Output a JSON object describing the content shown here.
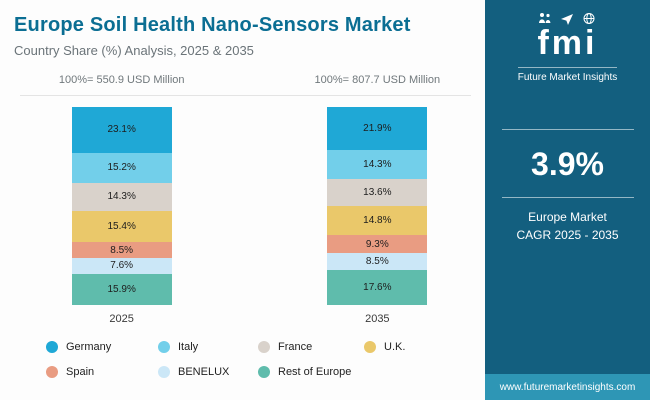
{
  "header": {
    "title": "Europe Soil Health Nano-Sensors Market",
    "subtitle": "Country Share (%) Analysis, 2025 & 2035"
  },
  "colors": {
    "title_color": "#0B6E93",
    "sidebar_bg": "#135F7F",
    "footer_bg": "#2E96B5",
    "gridline_color": "#e4e4e4"
  },
  "chart_data": {
    "type": "bar",
    "stacked": true,
    "title": "Europe Soil Health Nano-Sensors Market",
    "subtitle": "Country Share (%) Analysis, 2025 & 2035",
    "categories": [
      "2025",
      "2035"
    ],
    "totals": [
      "100%= 550.9 USD Million",
      "100%= 807.7 USD Million"
    ],
    "ylim": [
      0,
      100
    ],
    "legend_position": "bottom",
    "series": [
      {
        "name": "Germany",
        "color": "#1FA8D6",
        "values": [
          23.1,
          21.9
        ]
      },
      {
        "name": "Italy",
        "color": "#72CFEA",
        "values": [
          15.2,
          14.3
        ]
      },
      {
        "name": "France",
        "color": "#D9D2CB",
        "values": [
          14.3,
          13.6
        ]
      },
      {
        "name": "U.K.",
        "color": "#EAC86A",
        "values": [
          15.4,
          14.8
        ]
      },
      {
        "name": "Spain",
        "color": "#E99C82",
        "values": [
          8.5,
          9.3
        ]
      },
      {
        "name": "BENELUX",
        "color": "#CBE7F7",
        "values": [
          7.6,
          8.5
        ]
      },
      {
        "name": "Rest of Europe",
        "color": "#5FBCAC",
        "values": [
          15.9,
          17.6
        ]
      }
    ]
  },
  "sidebar": {
    "logo_icons": [
      "people-icon",
      "plane-icon",
      "globe-icon"
    ],
    "logo_text": "fmi",
    "logo_sub": "Future Market Insights",
    "cagr_value": "3.9%",
    "cagr_label_line1": "Europe Market",
    "cagr_label_line2": "CAGR 2025 - 2035",
    "footer_url": "www.futuremarketinsights.com"
  }
}
